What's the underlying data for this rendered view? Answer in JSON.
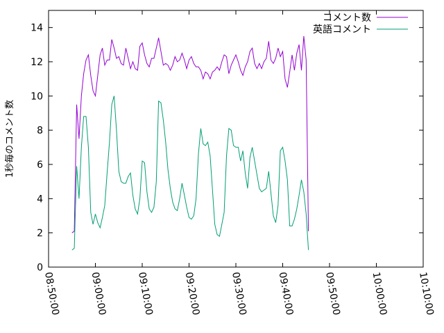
{
  "chart_data": {
    "type": "line",
    "title": "",
    "xlabel": "",
    "ylabel": "1秒毎のコメント数",
    "xlim": [
      "08:50:00",
      "10:10:00"
    ],
    "ylim": [
      0,
      15
    ],
    "x_ticks": [
      "08:50:00",
      "09:00:00",
      "09:10:00",
      "09:20:00",
      "09:30:00",
      "09:40:00",
      "09:50:00",
      "10:00:00",
      "10:10:00"
    ],
    "y_ticks": [
      0,
      2,
      4,
      6,
      8,
      10,
      12,
      14
    ],
    "legend_position": "top-right",
    "series": [
      {
        "name": "コメント数",
        "color": "#9400d3",
        "points": [
          [
            "08:55:00",
            2.0
          ],
          [
            "08:55:30",
            2.1
          ],
          [
            "08:56:00",
            9.5
          ],
          [
            "08:56:30",
            7.5
          ],
          [
            "08:57:00",
            10.0
          ],
          [
            "08:57:30",
            11.3
          ],
          [
            "08:58:00",
            12.1
          ],
          [
            "08:58:30",
            12.4
          ],
          [
            "08:59:00",
            11.2
          ],
          [
            "08:59:30",
            10.3
          ],
          [
            "09:00:00",
            10.0
          ],
          [
            "09:00:30",
            11.2
          ],
          [
            "09:01:00",
            12.4
          ],
          [
            "09:01:30",
            12.8
          ],
          [
            "09:02:00",
            11.8
          ],
          [
            "09:02:30",
            12.1
          ],
          [
            "09:03:00",
            12.1
          ],
          [
            "09:03:30",
            13.3
          ],
          [
            "09:04:00",
            12.8
          ],
          [
            "09:04:30",
            12.2
          ],
          [
            "09:05:00",
            12.3
          ],
          [
            "09:05:30",
            11.9
          ],
          [
            "09:06:00",
            11.8
          ],
          [
            "09:06:30",
            12.8
          ],
          [
            "09:07:00",
            12.2
          ],
          [
            "09:07:30",
            11.6
          ],
          [
            "09:08:00",
            12.0
          ],
          [
            "09:08:30",
            11.6
          ],
          [
            "09:09:00",
            11.5
          ],
          [
            "09:09:30",
            12.9
          ],
          [
            "09:10:00",
            13.1
          ],
          [
            "09:10:30",
            12.4
          ],
          [
            "09:11:00",
            11.9
          ],
          [
            "09:11:30",
            11.7
          ],
          [
            "09:12:00",
            12.2
          ],
          [
            "09:12:30",
            12.2
          ],
          [
            "09:13:00",
            12.8
          ],
          [
            "09:13:30",
            13.4
          ],
          [
            "09:14:00",
            12.6
          ],
          [
            "09:14:30",
            11.8
          ],
          [
            "09:15:00",
            11.9
          ],
          [
            "09:15:30",
            11.8
          ],
          [
            "09:16:00",
            11.5
          ],
          [
            "09:16:30",
            11.8
          ],
          [
            "09:17:00",
            12.3
          ],
          [
            "09:17:30",
            12.0
          ],
          [
            "09:18:00",
            12.1
          ],
          [
            "09:18:30",
            12.5
          ],
          [
            "09:19:00",
            12.1
          ],
          [
            "09:19:30",
            11.6
          ],
          [
            "09:20:00",
            12.1
          ],
          [
            "09:20:30",
            12.3
          ],
          [
            "09:21:00",
            11.9
          ],
          [
            "09:21:30",
            11.7
          ],
          [
            "09:22:00",
            11.7
          ],
          [
            "09:22:30",
            11.5
          ],
          [
            "09:23:00",
            11.0
          ],
          [
            "09:23:30",
            11.4
          ],
          [
            "09:24:00",
            11.3
          ],
          [
            "09:24:30",
            11.0
          ],
          [
            "09:25:00",
            11.4
          ],
          [
            "09:25:30",
            11.5
          ],
          [
            "09:26:00",
            11.7
          ],
          [
            "09:26:30",
            11.5
          ],
          [
            "09:27:00",
            12.0
          ],
          [
            "09:27:30",
            12.4
          ],
          [
            "09:28:00",
            12.3
          ],
          [
            "09:28:30",
            11.3
          ],
          [
            "09:29:00",
            11.8
          ],
          [
            "09:29:30",
            12.1
          ],
          [
            "09:30:00",
            12.4
          ],
          [
            "09:30:30",
            12.0
          ],
          [
            "09:31:00",
            11.5
          ],
          [
            "09:31:30",
            11.2
          ],
          [
            "09:32:00",
            11.7
          ],
          [
            "09:32:30",
            12.0
          ],
          [
            "09:33:00",
            12.6
          ],
          [
            "09:33:30",
            12.8
          ],
          [
            "09:34:00",
            11.9
          ],
          [
            "09:34:30",
            11.6
          ],
          [
            "09:35:00",
            11.9
          ],
          [
            "09:35:30",
            11.6
          ],
          [
            "09:36:00",
            12.0
          ],
          [
            "09:36:30",
            12.2
          ],
          [
            "09:37:00",
            13.2
          ],
          [
            "09:37:30",
            12.1
          ],
          [
            "09:38:00",
            11.9
          ],
          [
            "09:38:30",
            12.2
          ],
          [
            "09:39:00",
            12.8
          ],
          [
            "09:39:30",
            12.3
          ],
          [
            "09:40:00",
            12.6
          ],
          [
            "09:40:30",
            11.0
          ],
          [
            "09:41:00",
            10.5
          ],
          [
            "09:41:30",
            11.4
          ],
          [
            "09:42:00",
            12.4
          ],
          [
            "09:42:30",
            11.5
          ],
          [
            "09:43:00",
            12.5
          ],
          [
            "09:43:30",
            13.0
          ],
          [
            "09:44:00",
            11.5
          ],
          [
            "09:44:30",
            13.5
          ],
          [
            "09:45:00",
            12.1
          ],
          [
            "09:45:30",
            2.1
          ]
        ]
      },
      {
        "name": "英語コメント",
        "color": "#009e73",
        "points": [
          [
            "08:55:00",
            1.0
          ],
          [
            "08:55:30",
            1.1
          ],
          [
            "08:56:00",
            5.9
          ],
          [
            "08:56:30",
            4.0
          ],
          [
            "08:57:00",
            7.0
          ],
          [
            "08:57:30",
            8.8
          ],
          [
            "08:58:00",
            8.8
          ],
          [
            "08:58:30",
            7.0
          ],
          [
            "08:59:00",
            3.2
          ],
          [
            "08:59:30",
            2.5
          ],
          [
            "09:00:00",
            3.1
          ],
          [
            "09:00:30",
            2.6
          ],
          [
            "09:01:00",
            2.3
          ],
          [
            "09:01:30",
            2.9
          ],
          [
            "09:02:00",
            3.6
          ],
          [
            "09:02:30",
            5.5
          ],
          [
            "09:03:00",
            7.3
          ],
          [
            "09:03:30",
            9.5
          ],
          [
            "09:04:00",
            10.0
          ],
          [
            "09:04:30",
            8.0
          ],
          [
            "09:05:00",
            5.6
          ],
          [
            "09:05:30",
            5.0
          ],
          [
            "09:06:00",
            4.9
          ],
          [
            "09:06:30",
            4.9
          ],
          [
            "09:07:00",
            5.3
          ],
          [
            "09:07:30",
            5.5
          ],
          [
            "09:08:00",
            4.2
          ],
          [
            "09:08:30",
            3.4
          ],
          [
            "09:09:00",
            3.1
          ],
          [
            "09:09:30",
            4.0
          ],
          [
            "09:10:00",
            6.2
          ],
          [
            "09:10:30",
            6.1
          ],
          [
            "09:11:00",
            4.4
          ],
          [
            "09:11:30",
            3.4
          ],
          [
            "09:12:00",
            3.2
          ],
          [
            "09:12:30",
            3.5
          ],
          [
            "09:13:00",
            5.0
          ],
          [
            "09:13:30",
            9.7
          ],
          [
            "09:14:00",
            9.6
          ],
          [
            "09:14:30",
            8.6
          ],
          [
            "09:15:00",
            7.3
          ],
          [
            "09:15:30",
            5.7
          ],
          [
            "09:16:00",
            4.6
          ],
          [
            "09:16:30",
            3.8
          ],
          [
            "09:17:00",
            3.4
          ],
          [
            "09:17:30",
            3.3
          ],
          [
            "09:18:00",
            4.0
          ],
          [
            "09:18:30",
            4.9
          ],
          [
            "09:19:00",
            4.2
          ],
          [
            "09:19:30",
            3.5
          ],
          [
            "09:20:00",
            2.9
          ],
          [
            "09:20:30",
            2.8
          ],
          [
            "09:21:00",
            3.0
          ],
          [
            "09:21:30",
            4.0
          ],
          [
            "09:22:00",
            6.6
          ],
          [
            "09:22:30",
            8.1
          ],
          [
            "09:23:00",
            7.2
          ],
          [
            "09:23:30",
            7.1
          ],
          [
            "09:24:00",
            7.3
          ],
          [
            "09:24:30",
            6.5
          ],
          [
            "09:25:00",
            4.5
          ],
          [
            "09:25:30",
            2.5
          ],
          [
            "09:26:00",
            1.9
          ],
          [
            "09:26:30",
            1.8
          ],
          [
            "09:27:00",
            2.5
          ],
          [
            "09:27:30",
            3.2
          ],
          [
            "09:28:00",
            6.5
          ],
          [
            "09:28:30",
            8.1
          ],
          [
            "09:29:00",
            8.0
          ],
          [
            "09:29:30",
            7.1
          ],
          [
            "09:30:00",
            7.0
          ],
          [
            "09:30:30",
            7.0
          ],
          [
            "09:31:00",
            6.2
          ],
          [
            "09:31:30",
            6.8
          ],
          [
            "09:32:00",
            5.5
          ],
          [
            "09:32:30",
            4.6
          ],
          [
            "09:33:00",
            6.4
          ],
          [
            "09:33:30",
            7.0
          ],
          [
            "09:34:00",
            6.2
          ],
          [
            "09:34:30",
            5.4
          ],
          [
            "09:35:00",
            4.6
          ],
          [
            "09:35:30",
            4.4
          ],
          [
            "09:36:00",
            4.5
          ],
          [
            "09:36:30",
            4.6
          ],
          [
            "09:37:00",
            5.6
          ],
          [
            "09:37:30",
            4.3
          ],
          [
            "09:38:00",
            3.0
          ],
          [
            "09:38:30",
            2.6
          ],
          [
            "09:39:00",
            3.6
          ],
          [
            "09:39:30",
            6.8
          ],
          [
            "09:40:00",
            7.0
          ],
          [
            "09:40:30",
            6.2
          ],
          [
            "09:41:00",
            5.1
          ],
          [
            "09:41:30",
            2.4
          ],
          [
            "09:42:00",
            2.4
          ],
          [
            "09:42:30",
            2.8
          ],
          [
            "09:43:00",
            3.4
          ],
          [
            "09:43:30",
            4.2
          ],
          [
            "09:44:00",
            5.1
          ],
          [
            "09:44:30",
            4.4
          ],
          [
            "09:45:00",
            3.1
          ],
          [
            "09:45:30",
            1.0
          ]
        ]
      }
    ]
  }
}
